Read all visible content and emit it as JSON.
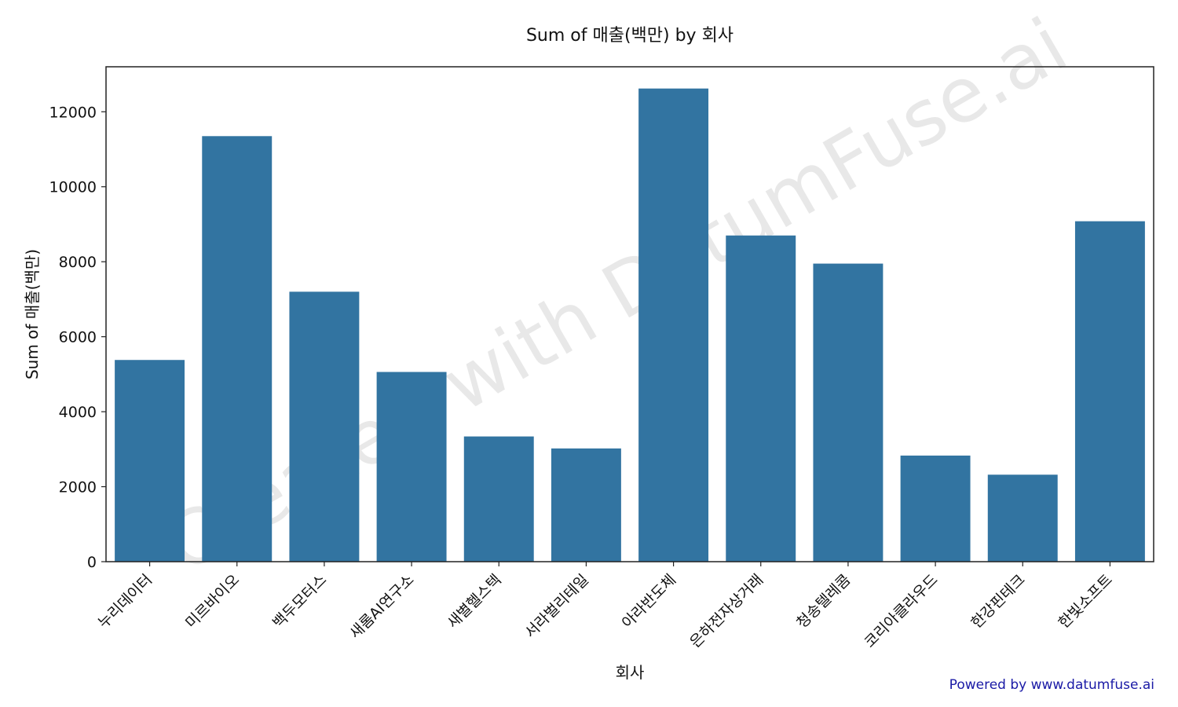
{
  "chart_data": {
    "type": "bar",
    "title": "Sum of 매출(백만) by 회사",
    "xlabel": "회사",
    "ylabel": "Sum of 매출(백만)",
    "categories": [
      "누리데이터",
      "미르바이오",
      "백두모터스",
      "새롬AI연구소",
      "새별헬스텍",
      "서라벌리테일",
      "아라반도체",
      "은하전자상거래",
      "청송텔레콤",
      "코리아클라우드",
      "한강핀테크",
      "한빛소프트"
    ],
    "values": [
      5380,
      11350,
      7200,
      5060,
      3340,
      3020,
      12620,
      8700,
      7950,
      2830,
      2320,
      9080
    ],
    "ylim": [
      0,
      13200
    ],
    "yticks": [
      0,
      2000,
      4000,
      6000,
      8000,
      10000,
      12000
    ],
    "color": "#3274a1",
    "grid": false
  },
  "watermark": "Created with DatumFuse.ai",
  "footer": "Powered by www.datumfuse.ai"
}
